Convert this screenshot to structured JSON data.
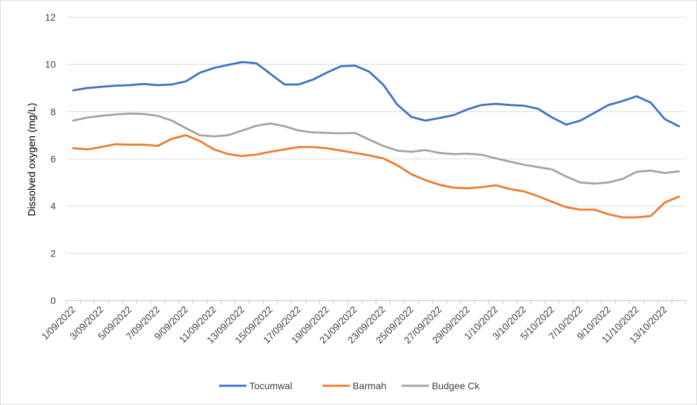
{
  "chart_data": {
    "type": "line",
    "title": "",
    "xlabel": "",
    "ylabel": "Dissolved oxygen (mg/L)",
    "ylim": [
      0,
      12
    ],
    "yticks": [
      "0",
      "2",
      "4",
      "6",
      "8",
      "10",
      "12"
    ],
    "x": [
      "1/09/2022",
      "2/09/2022",
      "3/09/2022",
      "4/09/2022",
      "5/09/2022",
      "6/09/2022",
      "7/09/2022",
      "8/09/2022",
      "9/09/2022",
      "10/09/2022",
      "11/09/2022",
      "12/09/2022",
      "13/09/2022",
      "14/09/2022",
      "15/09/2022",
      "16/09/2022",
      "17/09/2022",
      "18/09/2022",
      "19/09/2022",
      "20/09/2022",
      "21/09/2022",
      "22/09/2022",
      "23/09/2022",
      "24/09/2022",
      "25/09/2022",
      "26/09/2022",
      "27/09/2022",
      "28/09/2022",
      "29/09/2022",
      "30/09/2022",
      "1/10/2022",
      "2/10/2022",
      "3/10/2022",
      "4/10/2022",
      "5/10/2022",
      "6/10/2022",
      "7/10/2022",
      "8/10/2022",
      "9/10/2022",
      "10/10/2022",
      "11/10/2022",
      "12/10/2022",
      "13/10/2022",
      "14/10/2022"
    ],
    "xtick_labels": [
      "1/09/2022",
      "3/09/2022",
      "5/09/2022",
      "7/09/2022",
      "9/09/2022",
      "11/09/2022",
      "13/09/2022",
      "15/09/2022",
      "17/09/2022",
      "19/09/2022",
      "21/09/2022",
      "23/09/2022",
      "25/09/2022",
      "27/09/2022",
      "29/09/2022",
      "1/10/2022",
      "3/10/2022",
      "5/10/2022",
      "7/10/2022",
      "9/10/2022",
      "11/10/2022",
      "13/10/2022"
    ],
    "grid": "horizontal",
    "legend_position": "bottom",
    "series": [
      {
        "name": "Tocumwal",
        "color": "#4472C4",
        "values": [
          8.9,
          9.0,
          9.05,
          9.1,
          9.12,
          9.17,
          9.12,
          9.15,
          9.28,
          9.65,
          9.85,
          9.98,
          10.1,
          10.05,
          9.6,
          9.15,
          9.15,
          9.35,
          9.65,
          9.92,
          9.95,
          9.7,
          9.15,
          8.3,
          7.78,
          7.62,
          7.73,
          7.85,
          8.1,
          8.28,
          8.33,
          8.28,
          8.25,
          8.12,
          7.75,
          7.45,
          7.62,
          7.95,
          8.28,
          8.45,
          8.65,
          8.38,
          7.68,
          7.38
        ]
      },
      {
        "name": "Barmah",
        "color": "#ED7D31",
        "values": [
          6.45,
          6.4,
          6.5,
          6.62,
          6.6,
          6.6,
          6.55,
          6.85,
          7.0,
          6.75,
          6.4,
          6.2,
          6.12,
          6.18,
          6.3,
          6.4,
          6.5,
          6.5,
          6.45,
          6.35,
          6.25,
          6.15,
          6.02,
          5.73,
          5.35,
          5.1,
          4.9,
          4.78,
          4.75,
          4.8,
          4.88,
          4.72,
          4.62,
          4.42,
          4.18,
          3.95,
          3.85,
          3.85,
          3.65,
          3.52,
          3.52,
          3.58,
          4.15,
          4.4
        ]
      },
      {
        "name": "Budgee Ck",
        "color": "#A5A5A5",
        "values": [
          7.62,
          7.75,
          7.82,
          7.88,
          7.92,
          7.9,
          7.82,
          7.62,
          7.3,
          7.0,
          6.95,
          7.0,
          7.2,
          7.4,
          7.5,
          7.38,
          7.2,
          7.12,
          7.1,
          7.08,
          7.1,
          6.82,
          6.55,
          6.35,
          6.3,
          6.37,
          6.25,
          6.2,
          6.22,
          6.17,
          6.02,
          5.88,
          5.75,
          5.65,
          5.55,
          5.25,
          5.0,
          4.95,
          5.0,
          5.15,
          5.45,
          5.5,
          5.4,
          5.47
        ]
      }
    ]
  }
}
